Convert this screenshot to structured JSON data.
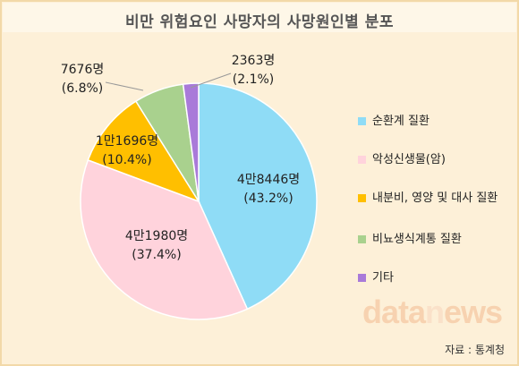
{
  "title": "비만 위험요인 사망자의 사망원인별 분포",
  "chart_data": {
    "type": "pie",
    "slices": [
      {
        "name": "순환계 질환",
        "count_label": "4만8446명",
        "percent_label": "(43.2%)",
        "value": 43.2,
        "color": "#8fdcf6"
      },
      {
        "name": "악성신생물(암)",
        "count_label": "4만1980명",
        "percent_label": "(37.4%)",
        "value": 37.4,
        "color": "#ffd3dc"
      },
      {
        "name": "내분비, 영양 및 대사 질환",
        "count_label": "1만1696명",
        "percent_label": "(10.4%)",
        "value": 10.4,
        "color": "#ffbf00"
      },
      {
        "name": "비뇨생식계통 질환",
        "count_label": "7676명",
        "percent_label": "(6.8%)",
        "value": 6.8,
        "color": "#a9d18e"
      },
      {
        "name": "기타",
        "count_label": "2363명",
        "percent_label": "(2.1%)",
        "value": 2.1,
        "color": "#a97ad9"
      }
    ],
    "legend_position": "right"
  },
  "legend": [
    {
      "label": "순환계 질환",
      "color": "#8fdcf6"
    },
    {
      "label": "악성신생물(암)",
      "color": "#ffd3dc"
    },
    {
      "label": "내분비, 영양 및 대사 질환",
      "color": "#ffbf00"
    },
    {
      "label": "비뇨생식계통 질환",
      "color": "#a9d18e"
    },
    {
      "label": "기타",
      "color": "#a97ad9"
    }
  ],
  "watermark": {
    "part1": "data",
    "part2": "n",
    "part3": "ews"
  },
  "source": "자료 : 통계청"
}
